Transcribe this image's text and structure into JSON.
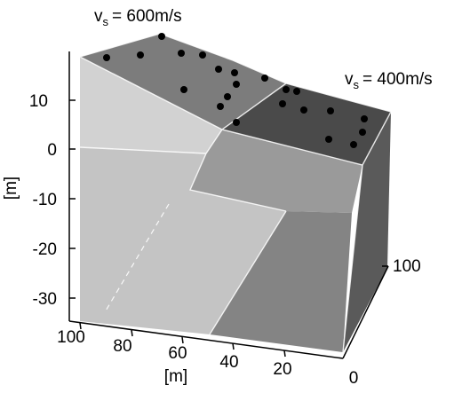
{
  "figure": {
    "velocity_labels": [
      {
        "symbol": "v",
        "subscript": "s",
        "value": "= 600m/s"
      },
      {
        "symbol": "v",
        "subscript": "s",
        "value": "= 400m/s"
      }
    ],
    "vertical_axis": {
      "label": "[m]",
      "ticks": [
        "10",
        "0",
        "-10",
        "-20",
        "-30"
      ]
    },
    "front_axis": {
      "label": "[m]",
      "ticks": [
        "100",
        "80",
        "60",
        "40",
        "20",
        "0"
      ]
    },
    "right_axis": {
      "ticks": [
        "100"
      ]
    },
    "colors": {
      "top_high_region": "#7c7c7c",
      "top_low_region": "#4a4a4a",
      "right_face": "#5a5a5a",
      "front_light": "#c4c4c4",
      "front_lighter": "#d2d2d2",
      "front_mid": "#9a9a9a",
      "front_dark": "#848484",
      "sensor_marker": "#000000"
    },
    "marker_count": 22
  }
}
